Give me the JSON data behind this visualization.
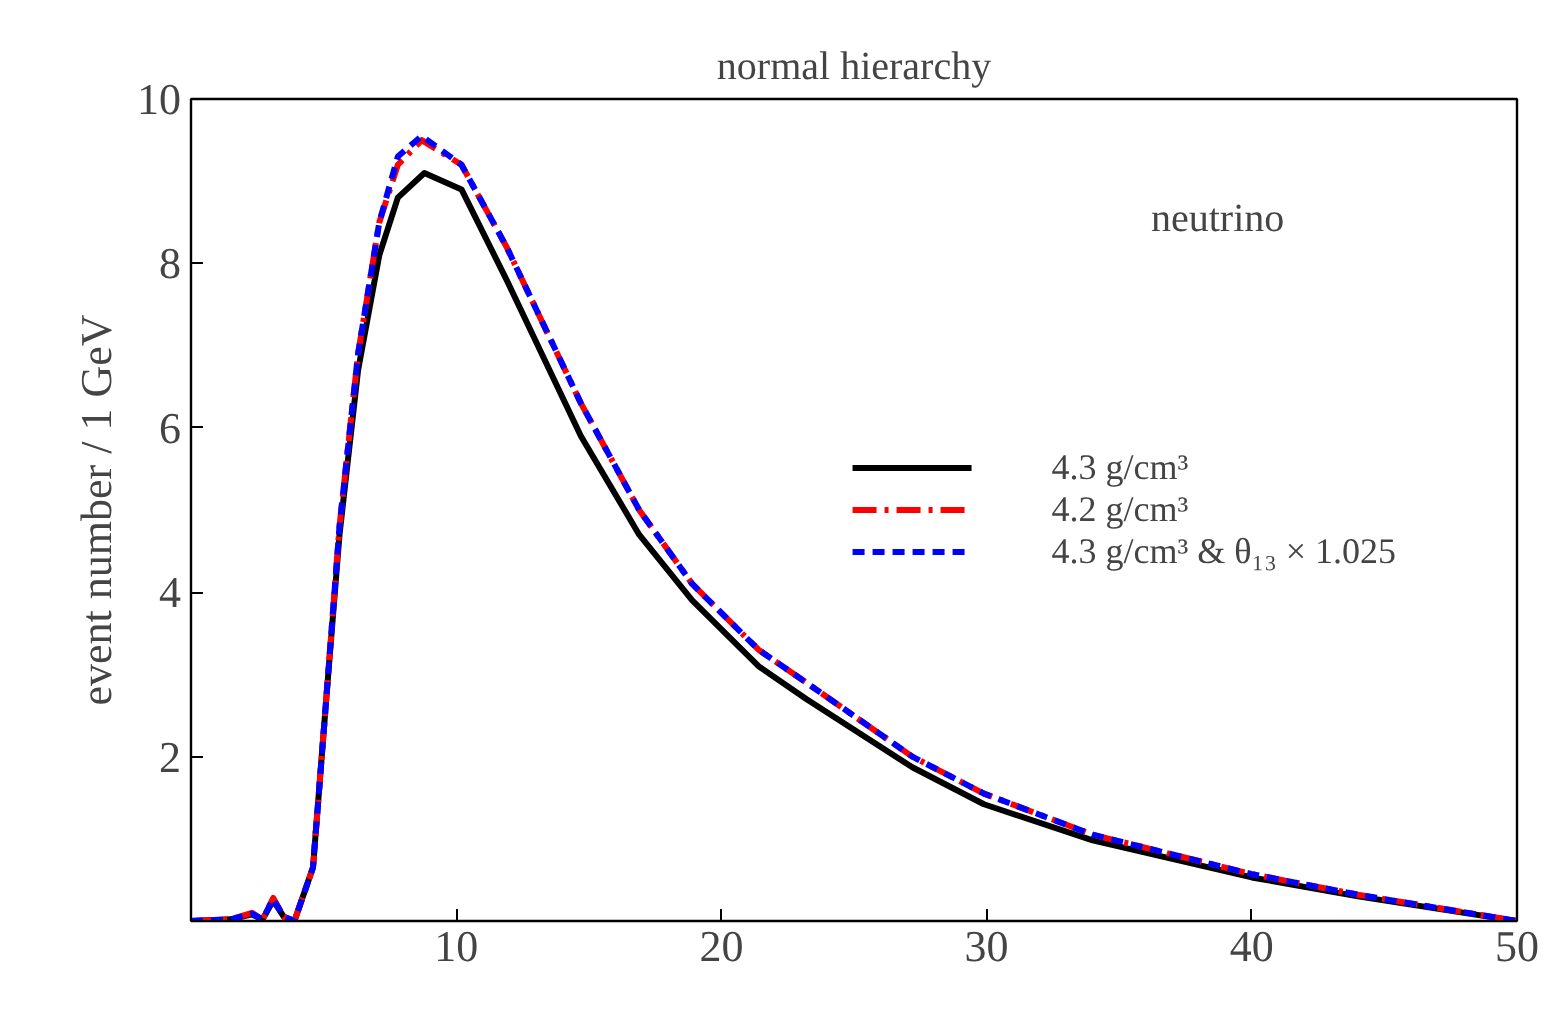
{
  "chart_data": {
    "type": "line",
    "title": "normal hierarchy",
    "ylabel": "event number / 1 GeV",
    "annotations": [
      "neutrino"
    ],
    "xlim": [
      0,
      50
    ],
    "ylim": [
      0,
      10
    ],
    "xticks": [
      10,
      20,
      30,
      40,
      50
    ],
    "yticks": [
      2,
      4,
      6,
      8,
      10
    ],
    "grid": false,
    "legend": "right",
    "marker": "none",
    "series": [
      {
        "name": "4.3 g/cm³",
        "color": "#000000",
        "line_style": "solid",
        "x": [
          0,
          1.5,
          2.3,
          2.7,
          3.1,
          3.5,
          3.9,
          4.6,
          5.1,
          5.6,
          6.3,
          7.1,
          7.8,
          8.8,
          10.2,
          11.9,
          14.7,
          16.9,
          18.9,
          21.4,
          23.2,
          27.2,
          29.9,
          34.0,
          40.0,
          44.0,
          50
        ],
        "values": [
          0,
          0.02,
          0.08,
          0.02,
          0.25,
          0.05,
          0,
          0.65,
          2.7,
          4.7,
          6.7,
          8.1,
          8.8,
          9.1,
          8.9,
          7.8,
          5.9,
          4.7,
          3.9,
          3.1,
          2.7,
          1.87,
          1.42,
          0.98,
          0.53,
          0.3,
          0
        ]
      },
      {
        "name": "4.2 g/cm³",
        "color": "#ff0000",
        "line_style": "dashed",
        "x": [
          0,
          1.5,
          2.3,
          2.7,
          3.1,
          3.5,
          3.9,
          4.6,
          5.1,
          5.6,
          6.3,
          7.1,
          7.8,
          8.7,
          10.2,
          11.9,
          14.7,
          16.9,
          18.9,
          21.4,
          23.2,
          27.2,
          29.9,
          34.0,
          40.0,
          44.0,
          50
        ],
        "values": [
          0,
          0.02,
          0.1,
          0.02,
          0.28,
          0.05,
          0,
          0.65,
          2.7,
          4.8,
          6.9,
          8.5,
          9.2,
          9.5,
          9.2,
          8.2,
          6.3,
          5.0,
          4.1,
          3.3,
          2.9,
          2.0,
          1.55,
          1.05,
          0.57,
          0.32,
          0
        ]
      },
      {
        "name": "4.3 g/cm³ & θ₁₃ × 1.025",
        "color": "#0000ff",
        "line_style": "dotted",
        "x": [
          0,
          1.5,
          2.3,
          2.7,
          3.1,
          3.5,
          3.9,
          4.6,
          5.1,
          5.6,
          6.3,
          7.1,
          7.8,
          8.7,
          10.2,
          11.9,
          14.7,
          16.9,
          18.9,
          21.4,
          23.2,
          27.2,
          29.9,
          34.0,
          40.0,
          44.0,
          50
        ],
        "values": [
          0,
          0.02,
          0.09,
          0.02,
          0.27,
          0.05,
          0,
          0.65,
          2.7,
          4.8,
          6.9,
          8.5,
          9.3,
          9.55,
          9.2,
          8.2,
          6.3,
          5.0,
          4.1,
          3.3,
          2.9,
          2.0,
          1.55,
          1.05,
          0.57,
          0.32,
          0
        ]
      }
    ]
  }
}
